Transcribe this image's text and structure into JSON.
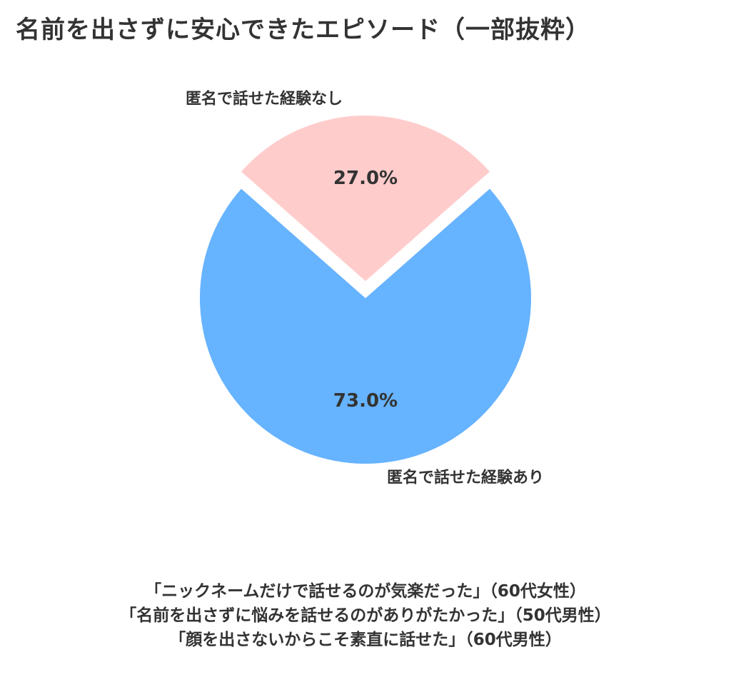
{
  "chart_data": {
    "type": "pie",
    "title": "名前を出さずに安心できたエピソード（一部抜粋）",
    "categories": [
      "匿名で話せた経験あり",
      "匿名で話せた経験なし"
    ],
    "values": [
      73.0,
      27.0
    ],
    "value_labels": [
      "73.0%",
      "27.0%"
    ],
    "colors": [
      "#66b3ff",
      "#ffcccc"
    ],
    "exploded_slice": "匿名で話せた経験なし",
    "legend": "none"
  },
  "quotes": [
    "「ニックネームだけで話せるのが気楽だった」（60代女性）",
    "「名前を出さずに悩みを話せるのがありがたかった」（50代男性）",
    "「顔を出さないからこそ素直に話せた」（60代男性）"
  ]
}
